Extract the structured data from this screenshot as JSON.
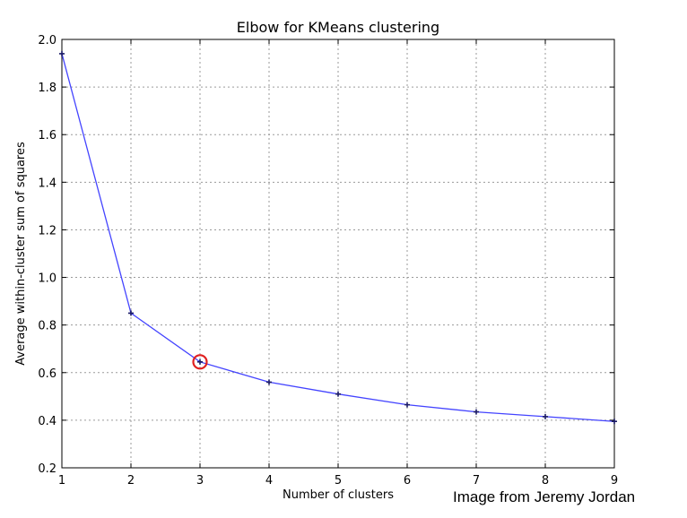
{
  "chart_data": {
    "type": "line",
    "title": "Elbow for KMeans clustering",
    "xlabel": "Number of clusters",
    "ylabel": "Average within-cluster sum of squares",
    "xlim": [
      1,
      9
    ],
    "ylim": [
      0.2,
      2.0
    ],
    "x_ticks": [
      "1",
      "2",
      "3",
      "4",
      "5",
      "6",
      "7",
      "8",
      "9"
    ],
    "y_ticks": [
      "0.2",
      "0.4",
      "0.6",
      "0.8",
      "1.0",
      "1.2",
      "1.4",
      "1.6",
      "1.8",
      "2.0"
    ],
    "grid": true,
    "series": [
      {
        "x": [
          1,
          2,
          3,
          4,
          5,
          6,
          7,
          8,
          9
        ],
        "values": [
          1.94,
          0.85,
          0.645,
          0.56,
          0.51,
          0.465,
          0.435,
          0.415,
          0.395
        ],
        "color": "#4444ff",
        "marker_color": "#1a1a66"
      }
    ],
    "highlight": {
      "x": 3,
      "y": 0.645,
      "color": "#e02020"
    }
  },
  "credit": "Image from Jeremy Jordan"
}
